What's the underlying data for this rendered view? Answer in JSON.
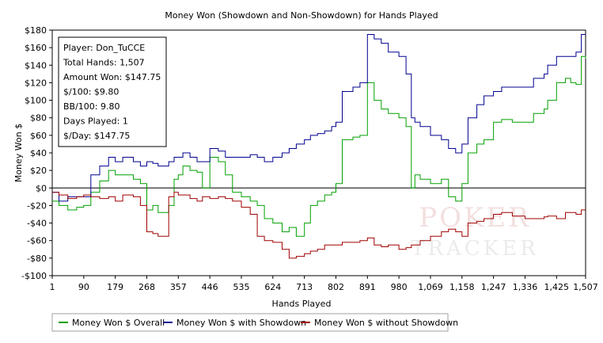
{
  "chart_data": {
    "type": "line",
    "title": "Money Won (Showdown and Non-Showdown) for Hands Played",
    "xlabel": "Hands Played",
    "ylabel": "Money Won $",
    "xlim": [
      1,
      1507
    ],
    "ylim": [
      -100,
      180
    ],
    "x_ticks": [
      1,
      90,
      179,
      268,
      357,
      446,
      535,
      624,
      713,
      802,
      891,
      980,
      1069,
      1158,
      1247,
      1336,
      1425,
      1507
    ],
    "x_tick_labels": [
      "1",
      "90",
      "179",
      "268",
      "357",
      "446",
      "535",
      "624",
      "713",
      "802",
      "891",
      "980",
      "1,069",
      "1,158",
      "1,247",
      "1,336",
      "1,425",
      "1,507"
    ],
    "y_ticks": [
      -100,
      -80,
      -60,
      -40,
      -20,
      0,
      20,
      40,
      60,
      80,
      100,
      120,
      140,
      160,
      180
    ],
    "y_tick_labels": [
      "-$100",
      "-$80",
      "-$60",
      "-$40",
      "-$20",
      "$0",
      "$20",
      "$40",
      "$60",
      "$80",
      "$100",
      "$120",
      "$140",
      "$160",
      "$180"
    ],
    "grid": false,
    "legend_position": "bottom",
    "series": [
      {
        "name": "Money Won $ Overall",
        "color": "#00a000",
        "x": [
          1,
          20,
          45,
          70,
          90,
          110,
          135,
          160,
          179,
          200,
          230,
          250,
          268,
          285,
          300,
          330,
          345,
          357,
          370,
          390,
          410,
          425,
          446,
          470,
          490,
          510,
          535,
          560,
          580,
          600,
          624,
          650,
          670,
          690,
          713,
          730,
          750,
          770,
          790,
          802,
          820,
          850,
          870,
          891,
          910,
          930,
          950,
          980,
          1000,
          1015,
          1025,
          1040,
          1069,
          1100,
          1120,
          1140,
          1158,
          1175,
          1200,
          1220,
          1247,
          1270,
          1300,
          1336,
          1360,
          1390,
          1400,
          1425,
          1450,
          1465,
          1480,
          1495,
          1507
        ],
        "y": [
          -15,
          -20,
          -25,
          -22,
          -20,
          -5,
          8,
          20,
          15,
          15,
          10,
          5,
          -25,
          -20,
          -28,
          -20,
          10,
          15,
          25,
          20,
          18,
          0,
          35,
          30,
          15,
          -5,
          -10,
          -15,
          -20,
          -35,
          -40,
          -50,
          -45,
          -55,
          -40,
          -20,
          -15,
          -8,
          -5,
          5,
          55,
          58,
          60,
          120,
          100,
          90,
          85,
          80,
          70,
          0,
          15,
          10,
          5,
          10,
          -10,
          -15,
          5,
          40,
          50,
          55,
          75,
          78,
          75,
          75,
          85,
          90,
          100,
          120,
          125,
          120,
          118,
          150,
          147.75
        ]
      },
      {
        "name": "Money Won $ with Showdown",
        "color": "#000090",
        "x": [
          1,
          20,
          45,
          70,
          90,
          110,
          135,
          160,
          179,
          200,
          230,
          250,
          268,
          285,
          300,
          330,
          345,
          357,
          370,
          390,
          410,
          425,
          446,
          470,
          490,
          510,
          535,
          560,
          580,
          600,
          624,
          650,
          670,
          690,
          713,
          730,
          750,
          770,
          790,
          802,
          820,
          850,
          870,
          891,
          910,
          930,
          950,
          980,
          1000,
          1015,
          1025,
          1040,
          1069,
          1100,
          1120,
          1140,
          1158,
          1175,
          1200,
          1220,
          1247,
          1270,
          1300,
          1336,
          1360,
          1390,
          1400,
          1425,
          1450,
          1465,
          1480,
          1495,
          1507
        ],
        "y": [
          -5,
          -15,
          -10,
          -10,
          -10,
          15,
          25,
          35,
          30,
          35,
          30,
          25,
          30,
          28,
          25,
          30,
          35,
          35,
          40,
          35,
          30,
          30,
          45,
          42,
          35,
          35,
          35,
          38,
          35,
          30,
          35,
          40,
          45,
          50,
          55,
          60,
          62,
          65,
          70,
          75,
          110,
          115,
          120,
          175,
          170,
          165,
          155,
          150,
          130,
          80,
          75,
          70,
          60,
          55,
          45,
          40,
          50,
          80,
          95,
          105,
          110,
          115,
          115,
          115,
          125,
          130,
          140,
          150,
          150,
          150,
          155,
          175,
          175
        ]
      },
      {
        "name": "Money Won $ without Showdown",
        "color": "#a00000",
        "x": [
          1,
          20,
          45,
          70,
          90,
          110,
          135,
          160,
          179,
          200,
          230,
          250,
          268,
          285,
          300,
          330,
          345,
          357,
          370,
          390,
          410,
          425,
          446,
          470,
          490,
          510,
          535,
          560,
          580,
          600,
          624,
          650,
          670,
          690,
          713,
          730,
          750,
          770,
          790,
          802,
          820,
          850,
          870,
          891,
          910,
          930,
          950,
          980,
          1000,
          1015,
          1025,
          1040,
          1069,
          1100,
          1120,
          1140,
          1158,
          1175,
          1200,
          1220,
          1247,
          1270,
          1300,
          1336,
          1360,
          1390,
          1400,
          1425,
          1450,
          1465,
          1480,
          1495,
          1507
        ],
        "y": [
          -5,
          -8,
          -12,
          -10,
          -8,
          -10,
          -12,
          -10,
          -15,
          -8,
          -10,
          -20,
          -50,
          -52,
          -55,
          -10,
          -5,
          -8,
          -8,
          -12,
          -15,
          -10,
          -12,
          -10,
          -12,
          -15,
          -22,
          -30,
          -55,
          -60,
          -62,
          -70,
          -80,
          -78,
          -75,
          -72,
          -70,
          -65,
          -65,
          -65,
          -62,
          -62,
          -60,
          -57,
          -65,
          -67,
          -65,
          -70,
          -68,
          -65,
          -65,
          -60,
          -55,
          -50,
          -47,
          -50,
          -55,
          -40,
          -38,
          -35,
          -30,
          -28,
          -32,
          -35,
          -35,
          -33,
          -32,
          -35,
          -28,
          -28,
          -30,
          -25,
          -25
        ]
      }
    ],
    "annotations": [
      {
        "label": "Player:",
        "value": "Don_TuCCE"
      },
      {
        "label": "Total Hands:",
        "value": "1,507"
      },
      {
        "label": "Amount Won:",
        "value": "$147.75"
      },
      {
        "label": "$/100:",
        "value": "$9.80"
      },
      {
        "label": "BB/100:",
        "value": "9.80"
      },
      {
        "label": "Days Played:",
        "value": "1"
      },
      {
        "label": "$/Day:",
        "value": "$147.75"
      }
    ],
    "watermark": "POKER TRACKER"
  }
}
